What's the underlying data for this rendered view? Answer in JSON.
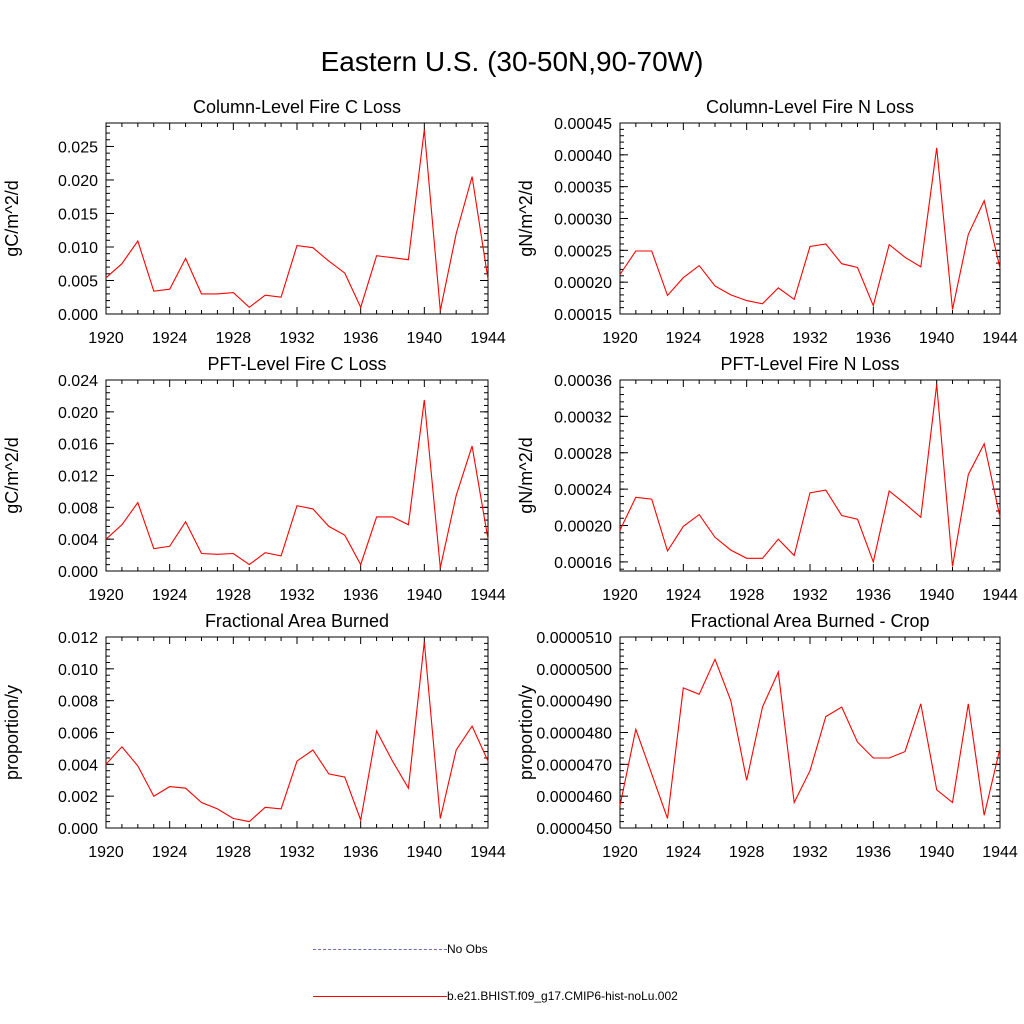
{
  "title": "Eastern U.S. (30-50N,90-70W)",
  "legend": [
    {
      "label": "No Obs",
      "color": "#6b6bb0",
      "style": "dashed"
    },
    {
      "label": "b.e21.BHIST.f09_g17.CMIP6-hist-noLu.002",
      "color": "#ff0000",
      "style": "solid"
    }
  ],
  "chart_data": [
    {
      "type": "line",
      "title": "Column-Level Fire C Loss",
      "ylabel": "gC/m^2/d",
      "xlim": [
        1920,
        1944
      ],
      "xticks": [
        "1920",
        "1924",
        "1928",
        "1932",
        "1936",
        "1940",
        "1944"
      ],
      "ylim": [
        0,
        0.0285
      ],
      "yticks": [
        "0.000",
        "0.005",
        "0.010",
        "0.015",
        "0.020",
        "0.025"
      ],
      "x": [
        1920,
        1921,
        1922,
        1923,
        1924,
        1925,
        1926,
        1927,
        1928,
        1929,
        1930,
        1931,
        1932,
        1933,
        1934,
        1935,
        1936,
        1937,
        1938,
        1939,
        1940,
        1941,
        1942,
        1943,
        1944
      ],
      "series": [
        {
          "color": "#ff0000",
          "values": [
            0.0054,
            0.0075,
            0.0109,
            0.0034,
            0.0037,
            0.0083,
            0.003,
            0.003,
            0.0032,
            0.001,
            0.0028,
            0.0025,
            0.0102,
            0.0099,
            0.0079,
            0.0061,
            0.001,
            0.0087,
            0.0084,
            0.0081,
            0.0275,
            0.0005,
            0.012,
            0.0205,
            0.0052
          ]
        }
      ]
    },
    {
      "type": "line",
      "title": "Column-Level Fire N Loss",
      "ylabel": "gN/m^2/d",
      "xlim": [
        1920,
        1944
      ],
      "xticks": [
        "1920",
        "1924",
        "1928",
        "1932",
        "1936",
        "1940",
        "1944"
      ],
      "ylim": [
        0.00015,
        0.00045
      ],
      "yticks": [
        "0.00015",
        "0.00020",
        "0.00025",
        "0.00030",
        "0.00035",
        "0.00040",
        "0.00045"
      ],
      "x": [
        1920,
        1921,
        1922,
        1923,
        1924,
        1925,
        1926,
        1927,
        1928,
        1929,
        1930,
        1931,
        1932,
        1933,
        1934,
        1935,
        1936,
        1937,
        1938,
        1939,
        1940,
        1941,
        1942,
        1943,
        1944
      ],
      "series": [
        {
          "color": "#ff0000",
          "values": [
            0.000212,
            0.000249,
            0.000249,
            0.000179,
            0.000207,
            0.000226,
            0.000194,
            0.00018,
            0.000171,
            0.000166,
            0.000191,
            0.000173,
            0.000256,
            0.00026,
            0.000229,
            0.000223,
            0.000163,
            0.000259,
            0.000239,
            0.000224,
            0.000411,
            0.000157,
            0.000275,
            0.000328,
            0.000222
          ]
        }
      ]
    },
    {
      "type": "line",
      "title": "PFT-Level Fire C Loss",
      "ylabel": "gC/m^2/d",
      "xlim": [
        1920,
        1944
      ],
      "xticks": [
        "1920",
        "1924",
        "1928",
        "1932",
        "1936",
        "1940",
        "1944"
      ],
      "ylim": [
        0,
        0.024
      ],
      "yticks": [
        "0.000",
        "0.004",
        "0.008",
        "0.012",
        "0.016",
        "0.020",
        "0.024"
      ],
      "x": [
        1920,
        1921,
        1922,
        1923,
        1924,
        1925,
        1926,
        1927,
        1928,
        1929,
        1930,
        1931,
        1932,
        1933,
        1934,
        1935,
        1936,
        1937,
        1938,
        1939,
        1940,
        1941,
        1942,
        1943,
        1944
      ],
      "series": [
        {
          "color": "#ff0000",
          "values": [
            0.004,
            0.0058,
            0.0086,
            0.0028,
            0.0031,
            0.0062,
            0.0022,
            0.0021,
            0.0022,
            0.0008,
            0.0023,
            0.0019,
            0.0082,
            0.0078,
            0.0056,
            0.0045,
            0.0008,
            0.0068,
            0.0068,
            0.0058,
            0.0215,
            0.0004,
            0.0095,
            0.0157,
            0.004
          ]
        }
      ]
    },
    {
      "type": "line",
      "title": "PFT-Level Fire N Loss",
      "ylabel": "gN/m^2/d",
      "xlim": [
        1920,
        1944
      ],
      "xticks": [
        "1920",
        "1924",
        "1928",
        "1932",
        "1936",
        "1940",
        "1944"
      ],
      "ylim": [
        0.00015,
        0.00036
      ],
      "yticks": [
        "0.00016",
        "0.00020",
        "0.00024",
        "0.00028",
        "0.00032",
        "0.00036"
      ],
      "x": [
        1920,
        1921,
        1922,
        1923,
        1924,
        1925,
        1926,
        1927,
        1928,
        1929,
        1930,
        1931,
        1932,
        1933,
        1934,
        1935,
        1936,
        1937,
        1938,
        1939,
        1940,
        1941,
        1942,
        1943,
        1944
      ],
      "series": [
        {
          "color": "#ff0000",
          "values": [
            0.000195,
            0.000231,
            0.000229,
            0.000172,
            0.000199,
            0.000212,
            0.000187,
            0.000173,
            0.000164,
            0.000164,
            0.000185,
            0.000167,
            0.000236,
            0.000239,
            0.000211,
            0.000207,
            0.00016,
            0.000238,
            0.000224,
            0.000209,
            0.000355,
            0.000155,
            0.000256,
            0.00029,
            0.000209
          ]
        }
      ]
    },
    {
      "type": "line",
      "title": "Fractional Area Burned",
      "ylabel": "proportion/y",
      "xlim": [
        1920,
        1944
      ],
      "xticks": [
        "1920",
        "1924",
        "1928",
        "1932",
        "1936",
        "1940",
        "1944"
      ],
      "ylim": [
        0,
        0.012
      ],
      "yticks": [
        "0.000",
        "0.002",
        "0.004",
        "0.006",
        "0.008",
        "0.010",
        "0.012"
      ],
      "x": [
        1920,
        1921,
        1922,
        1923,
        1924,
        1925,
        1926,
        1927,
        1928,
        1929,
        1930,
        1931,
        1932,
        1933,
        1934,
        1935,
        1936,
        1937,
        1938,
        1939,
        1940,
        1941,
        1942,
        1943,
        1944
      ],
      "series": [
        {
          "color": "#ff0000",
          "values": [
            0.004,
            0.0051,
            0.0039,
            0.002,
            0.0026,
            0.0025,
            0.0016,
            0.0012,
            0.0006,
            0.0004,
            0.0013,
            0.0012,
            0.0042,
            0.0049,
            0.0034,
            0.0032,
            0.0005,
            0.0061,
            0.0042,
            0.0025,
            0.0117,
            0.0006,
            0.0049,
            0.0064,
            0.0042
          ]
        }
      ]
    },
    {
      "type": "line",
      "title": "Fractional Area Burned - Crop",
      "ylabel": "proportion/y",
      "xlim": [
        1920,
        1944
      ],
      "xticks": [
        "1920",
        "1924",
        "1928",
        "1932",
        "1936",
        "1940",
        "1944"
      ],
      "ylim": [
        4.5e-05,
        5.1e-05
      ],
      "yticks": [
        "0.0000450",
        "0.0000460",
        "0.0000470",
        "0.0000480",
        "0.0000490",
        "0.0000500",
        "0.0000510"
      ],
      "x": [
        1920,
        1921,
        1922,
        1923,
        1924,
        1925,
        1926,
        1927,
        1928,
        1929,
        1930,
        1931,
        1932,
        1933,
        1934,
        1935,
        1936,
        1937,
        1938,
        1939,
        1940,
        1941,
        1942,
        1943,
        1944
      ],
      "series": [
        {
          "color": "#ff0000",
          "values": [
            4.57e-05,
            4.81e-05,
            4.67e-05,
            4.53e-05,
            4.94e-05,
            4.92e-05,
            5.03e-05,
            4.9e-05,
            4.65e-05,
            4.88e-05,
            4.99e-05,
            4.58e-05,
            4.68e-05,
            4.85e-05,
            4.88e-05,
            4.77e-05,
            4.72e-05,
            4.72e-05,
            4.74e-05,
            4.89e-05,
            4.62e-05,
            4.58e-05,
            4.89e-05,
            4.54e-05,
            4.75e-05
          ]
        }
      ]
    }
  ]
}
